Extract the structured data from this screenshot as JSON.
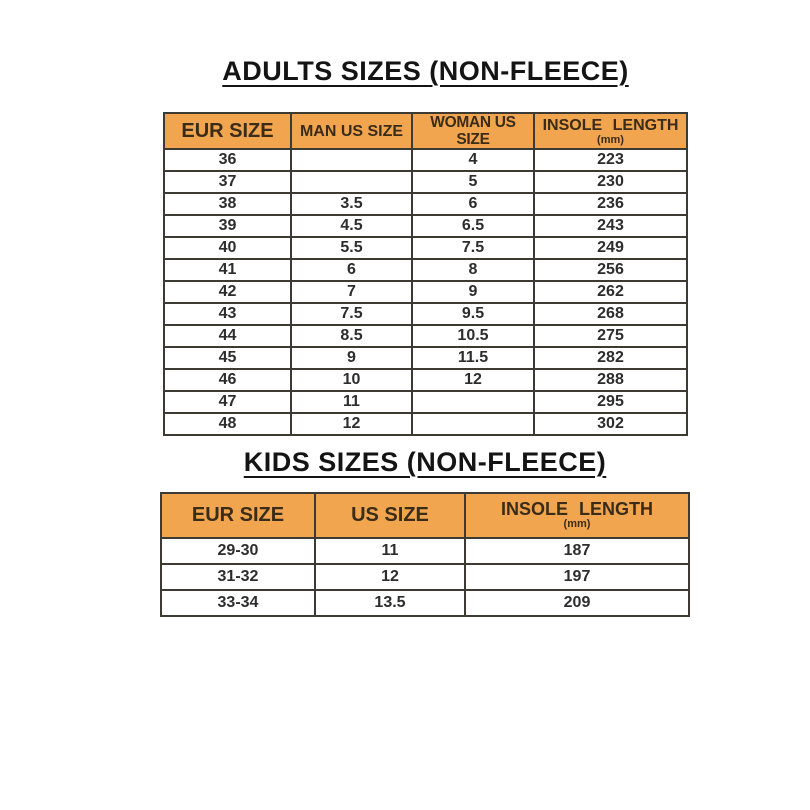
{
  "colors": {
    "header_bg": "#f0a54e",
    "header_text": "#3a2c18",
    "cell_text": "#2d2d2d",
    "border": "#3d3933",
    "title_text": "#141414",
    "background": "#ffffff"
  },
  "adults": {
    "title": "ADULTS SIZES (NON-FLEECE)",
    "headers": [
      {
        "label": "EUR SIZE",
        "sub": ""
      },
      {
        "label": "MAN US SIZE",
        "sub": ""
      },
      {
        "label": "WOMAN US SIZE",
        "sub": ""
      },
      {
        "label": "INSOLE LENGTH",
        "sub": "(mm)"
      }
    ],
    "rows": [
      [
        "36",
        "",
        "4",
        "223"
      ],
      [
        "37",
        "",
        "5",
        "230"
      ],
      [
        "38",
        "3.5",
        "6",
        "236"
      ],
      [
        "39",
        "4.5",
        "6.5",
        "243"
      ],
      [
        "40",
        "5.5",
        "7.5",
        "249"
      ],
      [
        "41",
        "6",
        "8",
        "256"
      ],
      [
        "42",
        "7",
        "9",
        "262"
      ],
      [
        "43",
        "7.5",
        "9.5",
        "268"
      ],
      [
        "44",
        "8.5",
        "10.5",
        "275"
      ],
      [
        "45",
        "9",
        "11.5",
        "282"
      ],
      [
        "46",
        "10",
        "12",
        "288"
      ],
      [
        "47",
        "11",
        "",
        "295"
      ],
      [
        "48",
        "12",
        "",
        "302"
      ]
    ]
  },
  "kids": {
    "title": "KIDS SIZES (NON-FLEECE)",
    "headers": [
      {
        "label": "EUR SIZE",
        "sub": ""
      },
      {
        "label": "US SIZE",
        "sub": ""
      },
      {
        "label": "INSOLE LENGTH",
        "sub": "(mm)"
      }
    ],
    "rows": [
      [
        "29-30",
        "11",
        "187"
      ],
      [
        "31-32",
        "12",
        "197"
      ],
      [
        "33-34",
        "13.5",
        "209"
      ]
    ]
  },
  "chart_data": [
    {
      "type": "table",
      "title": "ADULTS SIZES (NON-FLEECE)",
      "columns": [
        "EUR SIZE",
        "MAN US SIZE",
        "WOMAN US SIZE",
        "INSOLE LENGTH (mm)"
      ],
      "rows": [
        [
          "36",
          null,
          "4",
          223
        ],
        [
          "37",
          null,
          "5",
          230
        ],
        [
          "38",
          "3.5",
          "6",
          236
        ],
        [
          "39",
          "4.5",
          "6.5",
          243
        ],
        [
          "40",
          "5.5",
          "7.5",
          249
        ],
        [
          "41",
          "6",
          "8",
          256
        ],
        [
          "42",
          "7",
          "9",
          262
        ],
        [
          "43",
          "7.5",
          "9.5",
          268
        ],
        [
          "44",
          "8.5",
          "10.5",
          275
        ],
        [
          "45",
          "9",
          "11.5",
          282
        ],
        [
          "46",
          "10",
          "12",
          288
        ],
        [
          "47",
          "11",
          null,
          295
        ],
        [
          "48",
          "12",
          null,
          302
        ]
      ]
    },
    {
      "type": "table",
      "title": "KIDS SIZES (NON-FLEECE)",
      "columns": [
        "EUR SIZE",
        "US SIZE",
        "INSOLE LENGTH (mm)"
      ],
      "rows": [
        [
          "29-30",
          "11",
          187
        ],
        [
          "31-32",
          "12",
          197
        ],
        [
          "33-34",
          "13.5",
          209
        ]
      ]
    }
  ]
}
